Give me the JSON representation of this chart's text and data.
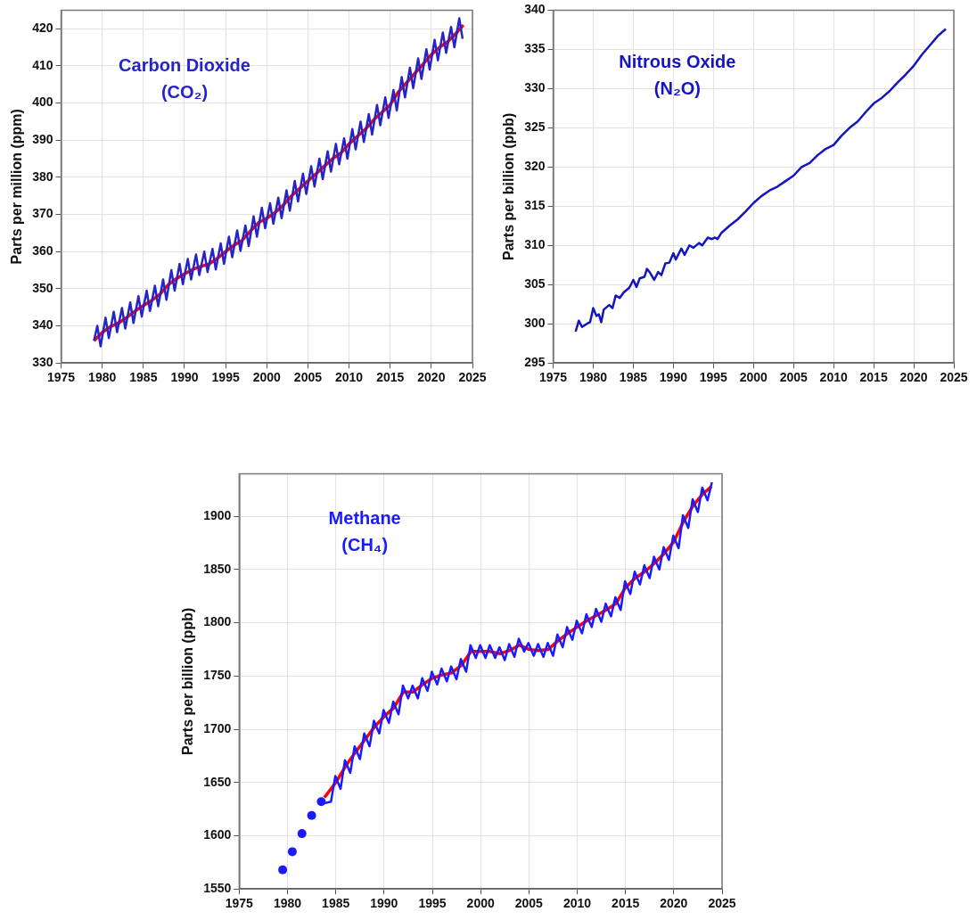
{
  "chart_data": [
    {
      "type": "line",
      "title": "Carbon Dioxide",
      "subtitle": "(CO₂)",
      "ylabel": "Parts per million (ppm)",
      "xlim": [
        1975,
        2025
      ],
      "xticks": [
        1975,
        1980,
        1985,
        1990,
        1995,
        2000,
        2005,
        2010,
        2015,
        2020,
        2025
      ],
      "ylim": [
        330,
        425
      ],
      "yticks": [
        330,
        340,
        350,
        360,
        370,
        380,
        390,
        400,
        410,
        420
      ],
      "grid": true,
      "series": [
        {
          "type": "line",
          "color": "#2424c8",
          "x": [
            1979.0,
            1979.4,
            1979.8,
            1980.4,
            1980.8,
            1981.4,
            1981.8,
            1982.4,
            1982.8,
            1983.4,
            1983.8,
            1984.4,
            1984.8,
            1985.4,
            1985.8,
            1986.4,
            1986.8,
            1987.4,
            1987.8,
            1988.4,
            1988.8,
            1989.4,
            1989.8,
            1990.4,
            1990.8,
            1991.4,
            1991.8,
            1992.4,
            1992.8,
            1993.4,
            1993.8,
            1994.4,
            1994.8,
            1995.4,
            1995.8,
            1996.4,
            1996.8,
            1997.4,
            1997.8,
            1998.4,
            1998.8,
            1999.4,
            1999.8,
            2000.4,
            2000.8,
            2001.4,
            2001.8,
            2002.4,
            2002.8,
            2003.4,
            2003.8,
            2004.4,
            2004.8,
            2005.4,
            2005.8,
            2006.4,
            2006.8,
            2007.4,
            2007.8,
            2008.4,
            2008.8,
            2009.4,
            2009.8,
            2010.4,
            2010.8,
            2011.4,
            2011.8,
            2012.4,
            2012.8,
            2013.4,
            2013.8,
            2014.4,
            2014.8,
            2015.4,
            2015.8,
            2016.4,
            2016.8,
            2017.4,
            2017.8,
            2018.4,
            2018.8,
            2019.4,
            2019.8,
            2020.4,
            2020.8,
            2021.4,
            2021.8,
            2022.4,
            2022.8,
            2023.4,
            2023.8
          ],
          "values": [
            336.0,
            340.0,
            334.5,
            342.2,
            336.7,
            343.8,
            338.3,
            344.8,
            339.3,
            346.3,
            340.8,
            348.0,
            342.5,
            349.5,
            344.0,
            350.8,
            345.3,
            352.5,
            347.0,
            355.0,
            349.5,
            356.7,
            351.2,
            358.0,
            352.5,
            359.2,
            353.7,
            360.0,
            354.5,
            360.7,
            355.2,
            362.2,
            356.7,
            364.0,
            358.5,
            365.7,
            360.2,
            367.0,
            361.5,
            369.5,
            364.0,
            371.8,
            366.3,
            373.0,
            367.5,
            374.5,
            369.0,
            376.5,
            371.0,
            379.0,
            373.5,
            381.0,
            375.5,
            383.0,
            377.5,
            385.0,
            379.5,
            387.0,
            381.5,
            389.0,
            383.5,
            390.5,
            385.0,
            393.0,
            387.5,
            395.0,
            389.5,
            397.0,
            391.5,
            399.5,
            394.0,
            401.5,
            396.0,
            403.5,
            398.0,
            407.0,
            401.5,
            409.5,
            404.0,
            412.0,
            406.5,
            414.5,
            409.0,
            417.0,
            411.5,
            419.0,
            413.5,
            420.5,
            415.0,
            422.8,
            417.3
          ]
        },
        {
          "type": "line",
          "color": "#ff0000",
          "x": [
            1979,
            1980,
            1981,
            1982,
            1983,
            1984,
            1985,
            1986,
            1987,
            1988,
            1989,
            1990,
            1991,
            1992,
            1993,
            1994,
            1995,
            1996,
            1997,
            1998,
            1999,
            2000,
            2001,
            2002,
            2003,
            2004,
            2005,
            2006,
            2007,
            2008,
            2009,
            2010,
            2011,
            2012,
            2013,
            2014,
            2015,
            2016,
            2017,
            2018,
            2019,
            2020,
            2021,
            2022,
            2023,
            2023.9
          ],
          "values": [
            336.0,
            338.2,
            339.8,
            340.8,
            342.3,
            344.0,
            345.5,
            346.8,
            348.5,
            351.0,
            352.7,
            354.0,
            355.2,
            356.0,
            356.7,
            358.2,
            360.0,
            361.7,
            363.0,
            365.5,
            367.8,
            369.0,
            370.5,
            372.5,
            375.0,
            377.0,
            379.0,
            381.0,
            383.0,
            385.0,
            386.5,
            389.0,
            391.0,
            393.0,
            395.5,
            397.5,
            399.5,
            403.0,
            405.5,
            408.0,
            410.5,
            413.0,
            415.0,
            416.5,
            418.8,
            421.0
          ]
        }
      ]
    },
    {
      "type": "line",
      "title": "Nitrous Oxide",
      "subtitle": "(N₂O)",
      "ylabel": "Parts per billion (ppb)",
      "xlim": [
        1975,
        2025
      ],
      "xticks": [
        1975,
        1980,
        1985,
        1990,
        1995,
        2000,
        2005,
        2010,
        2015,
        2020,
        2025
      ],
      "ylim": [
        295,
        340
      ],
      "yticks": [
        295,
        300,
        305,
        310,
        315,
        320,
        325,
        330,
        335,
        340
      ],
      "grid": true,
      "series": [
        {
          "type": "line",
          "color": "#1414c0",
          "x": [
            1977.8,
            1978.2,
            1978.6,
            1979.2,
            1979.6,
            1980.0,
            1980.4,
            1980.7,
            1981.0,
            1981.3,
            1982.0,
            1982.4,
            1982.8,
            1983.3,
            1983.8,
            1984.5,
            1985.0,
            1985.4,
            1985.8,
            1986.4,
            1986.7,
            1987.1,
            1987.6,
            1988.1,
            1988.5,
            1989.0,
            1989.5,
            1990.0,
            1990.3,
            1991.0,
            1991.4,
            1992.0,
            1992.5,
            1993.2,
            1993.6,
            1994.3,
            1994.8,
            1995.2,
            1995.5,
            1996,
            1997,
            1998,
            1999,
            2000,
            2001,
            2002,
            2003,
            2004,
            2005,
            2006,
            2007,
            2008,
            2009,
            2010,
            2011,
            2012,
            2013,
            2014,
            2015,
            2016,
            2017,
            2018,
            2019,
            2020,
            2021,
            2022,
            2023,
            2024
          ],
          "values": [
            299.0,
            300.4,
            299.6,
            300.0,
            300.2,
            302.0,
            301.0,
            301.2,
            300.2,
            301.8,
            302.4,
            302.0,
            303.6,
            303.3,
            304.0,
            304.6,
            305.6,
            304.7,
            305.8,
            306.0,
            307.0,
            306.5,
            305.6,
            306.6,
            306.2,
            307.7,
            307.8,
            309.0,
            308.2,
            309.6,
            308.8,
            310.0,
            309.7,
            310.3,
            310.0,
            311.0,
            310.8,
            311.0,
            310.8,
            311.6,
            312.5,
            313.3,
            314.3,
            315.4,
            316.3,
            317.0,
            317.5,
            318.2,
            318.9,
            320.0,
            320.5,
            321.5,
            322.3,
            322.8,
            324.0,
            325.0,
            325.8,
            327.0,
            328.1,
            328.8,
            329.7,
            330.8,
            331.8,
            332.9,
            334.3,
            335.5,
            336.7,
            337.6
          ]
        }
      ]
    },
    {
      "type": "line",
      "title": "Methane",
      "subtitle": "(CH₄)",
      "ylabel": "Parts per billion (ppb)",
      "xlim": [
        1975,
        2025
      ],
      "xticks": [
        1975,
        1980,
        1985,
        1990,
        1995,
        2000,
        2005,
        2010,
        2015,
        2020,
        2025
      ],
      "ylim": [
        1550,
        1940
      ],
      "yticks": [
        1550,
        1600,
        1650,
        1700,
        1750,
        1800,
        1850,
        1900
      ],
      "grid": true,
      "series": [
        {
          "type": "scatter",
          "color": "#1a1aff",
          "x": [
            1979.5,
            1980.5,
            1981.5,
            1982.5,
            1983.5
          ],
          "values": [
            1568,
            1585,
            1602,
            1619,
            1632
          ]
        },
        {
          "type": "line",
          "color": "#1a1aff",
          "x": [
            1983.6,
            1984.5,
            1984.95,
            1985.5,
            1985.95,
            1986.5,
            1986.95,
            1987.5,
            1987.95,
            1988.5,
            1988.95,
            1989.5,
            1989.95,
            1990.5,
            1990.95,
            1991.5,
            1991.95,
            1992.5,
            1992.95,
            1993.5,
            1993.95,
            1994.5,
            1994.95,
            1995.5,
            1995.95,
            1996.5,
            1996.95,
            1997.5,
            1997.95,
            1998.5,
            1998.95,
            1999.5,
            1999.95,
            2000.5,
            2000.95,
            2001.5,
            2001.95,
            2002.5,
            2002.95,
            2003.5,
            2003.95,
            2004.5,
            2004.95,
            2005.5,
            2005.95,
            2006.5,
            2006.95,
            2007.5,
            2007.95,
            2008.5,
            2008.95,
            2009.5,
            2009.95,
            2010.5,
            2010.95,
            2011.5,
            2011.95,
            2012.5,
            2012.95,
            2013.5,
            2013.95,
            2014.5,
            2014.95,
            2015.5,
            2015.95,
            2016.5,
            2016.95,
            2017.5,
            2017.95,
            2018.5,
            2018.95,
            2019.5,
            2019.95,
            2020.5,
            2020.95,
            2021.5,
            2021.95,
            2022.5,
            2022.95,
            2023.5,
            2023.95
          ],
          "values": [
            1630,
            1632,
            1656,
            1644,
            1671,
            1659,
            1684,
            1672,
            1696,
            1684,
            1708,
            1696,
            1718,
            1706,
            1726,
            1714,
            1741,
            1729,
            1741,
            1729,
            1748,
            1736,
            1754,
            1742,
            1757,
            1745,
            1759,
            1747,
            1766,
            1754,
            1779,
            1767,
            1779,
            1767,
            1779,
            1767,
            1777,
            1765,
            1780,
            1768,
            1785,
            1773,
            1781,
            1769,
            1780,
            1768,
            1781,
            1769,
            1789,
            1777,
            1796,
            1784,
            1802,
            1790,
            1808,
            1796,
            1813,
            1801,
            1818,
            1806,
            1824,
            1812,
            1839,
            1827,
            1848,
            1836,
            1854,
            1842,
            1862,
            1850,
            1871,
            1859,
            1882,
            1870,
            1901,
            1889,
            1916,
            1904,
            1927,
            1915,
            1932
          ]
        },
        {
          "type": "line",
          "color": "#ff0000",
          "x": [
            1983.8,
            1984,
            1985,
            1986,
            1987,
            1988,
            1989,
            1990,
            1991,
            1992,
            1993,
            1994,
            1995,
            1996,
            1997,
            1998,
            1999,
            2000,
            2001,
            2002,
            2003,
            2004,
            2005,
            2006,
            2007,
            2008,
            2009,
            2010,
            2011,
            2012,
            2013,
            2014,
            2015,
            2016,
            2017,
            2018,
            2019,
            2020,
            2021,
            2022,
            2023,
            2023.9
          ],
          "values": [
            1636,
            1638,
            1650,
            1665,
            1678,
            1690,
            1702,
            1712,
            1720,
            1735,
            1735,
            1742,
            1748,
            1751,
            1753,
            1760,
            1773,
            1773,
            1773,
            1771,
            1774,
            1779,
            1775,
            1774,
            1775,
            1783,
            1790,
            1796,
            1802,
            1807,
            1812,
            1818,
            1833,
            1842,
            1848,
            1856,
            1865,
            1876,
            1895,
            1910,
            1921,
            1928
          ]
        }
      ]
    }
  ]
}
